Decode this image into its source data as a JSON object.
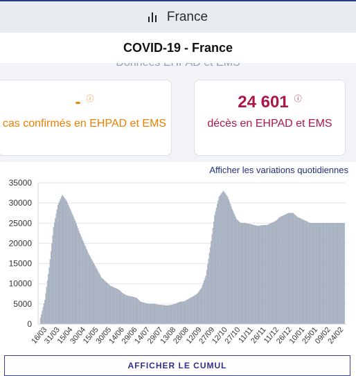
{
  "header": {
    "country": "France",
    "icon": "bar-chart-icon"
  },
  "title": "COVID-19 - France",
  "section_heading_partial": "Données EHPAD et EMS",
  "cards": [
    {
      "value": "-",
      "info_icon": "ⓘ",
      "label": "cas confirmés en EHPAD et EMS",
      "color": "#f07d00"
    },
    {
      "value": "24 601",
      "info_icon": "ⓘ",
      "label": "décès en EHPAD et EMS",
      "color": "#ad1746"
    }
  ],
  "links": {
    "variations": "Afficher les variations quotidiennes"
  },
  "buttons": {
    "cumul": "AFFICHER LE CUMUL"
  },
  "chart_data": {
    "type": "bar",
    "bar_color": "#b3bccb",
    "ylim": [
      0,
      35000
    ],
    "yticks": [
      "0",
      "5000",
      "10000",
      "15000",
      "20000",
      "25000",
      "30000",
      "35000"
    ],
    "ytick_values": [
      0,
      5000,
      10000,
      15000,
      20000,
      25000,
      30000,
      35000
    ],
    "xtick_labels": [
      "16/03",
      "31/03",
      "15/04",
      "30/04",
      "15/05",
      "30/05",
      "14/06",
      "29/06",
      "14/07",
      "29/07",
      "13/08",
      "28/08",
      "12/09",
      "27/09",
      "12/10",
      "27/10",
      "11/11",
      "26/11",
      "11/12",
      "26/12",
      "10/01",
      "25/01",
      "09/02",
      "24/02"
    ],
    "series": [
      {
        "keypoints_x_index": [
          0,
          5,
          10,
          15,
          20,
          25,
          30,
          35,
          40,
          45,
          50,
          55,
          60,
          65,
          70,
          75,
          80,
          85,
          90,
          95,
          100,
          105,
          110,
          115,
          120,
          125,
          130,
          135,
          140,
          145,
          150,
          155,
          160,
          165,
          170,
          175,
          180,
          185,
          190,
          195,
          200,
          205,
          210,
          215,
          220,
          225,
          230,
          235,
          240,
          245,
          250,
          255,
          260,
          265,
          270,
          275,
          280,
          285,
          290,
          295,
          300,
          305,
          310,
          315,
          320,
          325,
          330,
          335,
          340,
          345
        ],
        "keypoints_y": [
          1500,
          6000,
          14000,
          24000,
          29500,
          32000,
          30500,
          28000,
          25500,
          22500,
          20000,
          17500,
          15500,
          13500,
          11500,
          10500,
          9500,
          9000,
          8500,
          7500,
          7000,
          6800,
          6500,
          5500,
          5200,
          5000,
          5000,
          4800,
          4700,
          4600,
          4700,
          5000,
          5500,
          5600,
          6200,
          6800,
          7500,
          9000,
          12000,
          19000,
          27000,
          31500,
          33000,
          31500,
          28500,
          26000,
          25000,
          25000,
          24800,
          24500,
          24300,
          24500,
          24500,
          25000,
          25500,
          26500,
          27000,
          27500,
          27500,
          26500,
          26000,
          25500,
          25000,
          25000,
          25000,
          25000,
          25000,
          25000,
          25000,
          25000
        ]
      }
    ],
    "num_points": 350
  }
}
